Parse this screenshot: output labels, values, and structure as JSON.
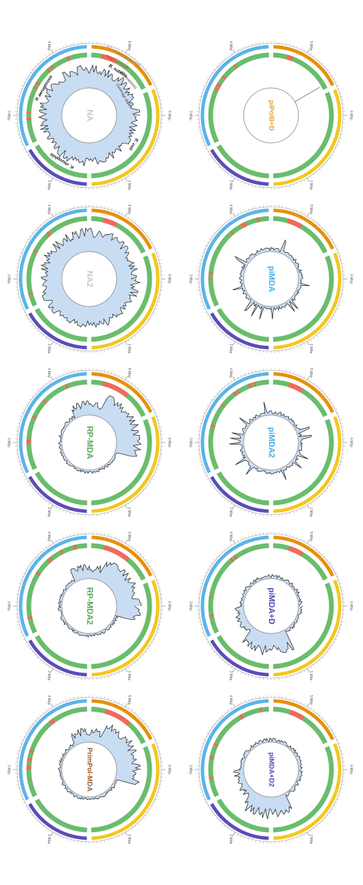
{
  "figure": {
    "panels": [
      {
        "id": "NA",
        "label": "NA",
        "label_color": "#c8c8c8",
        "profile": "high",
        "annotated": true
      },
      {
        "id": "NA2",
        "label": "NA2",
        "label_color": "#c8c8c8",
        "profile": "high",
        "annotated": false
      },
      {
        "id": "RP-MDA",
        "label": "RP-MDA",
        "label_color": "#5aa55a",
        "profile": "skew_top",
        "annotated": false
      },
      {
        "id": "RP-MDA2",
        "label": "RP-MDA2",
        "label_color": "#5aa55a",
        "profile": "skew_top",
        "annotated": false
      },
      {
        "id": "PrimPol-MDA",
        "label": "PrimPol-MDA",
        "label_color": "#9a5a2a",
        "profile": "skew_top",
        "annotated": false
      },
      {
        "id": "piPolB+D",
        "label": "piPolB+D",
        "label_color": "#f0a020",
        "profile": "empty",
        "annotated": false
      },
      {
        "id": "piMDA",
        "label": "piMDA",
        "label_color": "#4aaee8",
        "profile": "flat",
        "annotated": false
      },
      {
        "id": "piMDA2",
        "label": "piMDA2",
        "label_color": "#4aaee8",
        "profile": "flat",
        "annotated": false
      },
      {
        "id": "piMDA+D",
        "label": "piMDA+D",
        "label_color": "#4d4db8",
        "profile": "skew_bottom",
        "annotated": false
      },
      {
        "id": "piMDA+D2",
        "label": "piMDA+D2",
        "label_color": "#4d4db8",
        "profile": "skew_bottom",
        "annotated": false
      }
    ],
    "genomes": [
      {
        "name": "B. subtilis",
        "color": "#e8900a"
      },
      {
        "name": "E. coli",
        "color": "#f2c81e"
      },
      {
        "name": "K. rhizophila",
        "color": "#5b4db8"
      },
      {
        "name": "P. aeruginosa",
        "color": "#5bb4e8"
      }
    ],
    "tick_labels": [
      "1 Mbp",
      "2 Mbp",
      "3 Mbp",
      "4 Mbp",
      "5 Mbp",
      "6 Mbp"
    ],
    "legend": {
      "gc_content": "GC content (outer ring)",
      "mismatches": "(Mismatches)",
      "read_coverage": "Read coverage",
      "coverage_depth": "Coverage depth"
    },
    "colors": {
      "ring_covered": "#69bd6c",
      "ring_uncovered": "#f06a5a",
      "coverage_fill": "#c8dcf2",
      "coverage_line": "#111111",
      "tick": "#9a9a9a"
    }
  }
}
